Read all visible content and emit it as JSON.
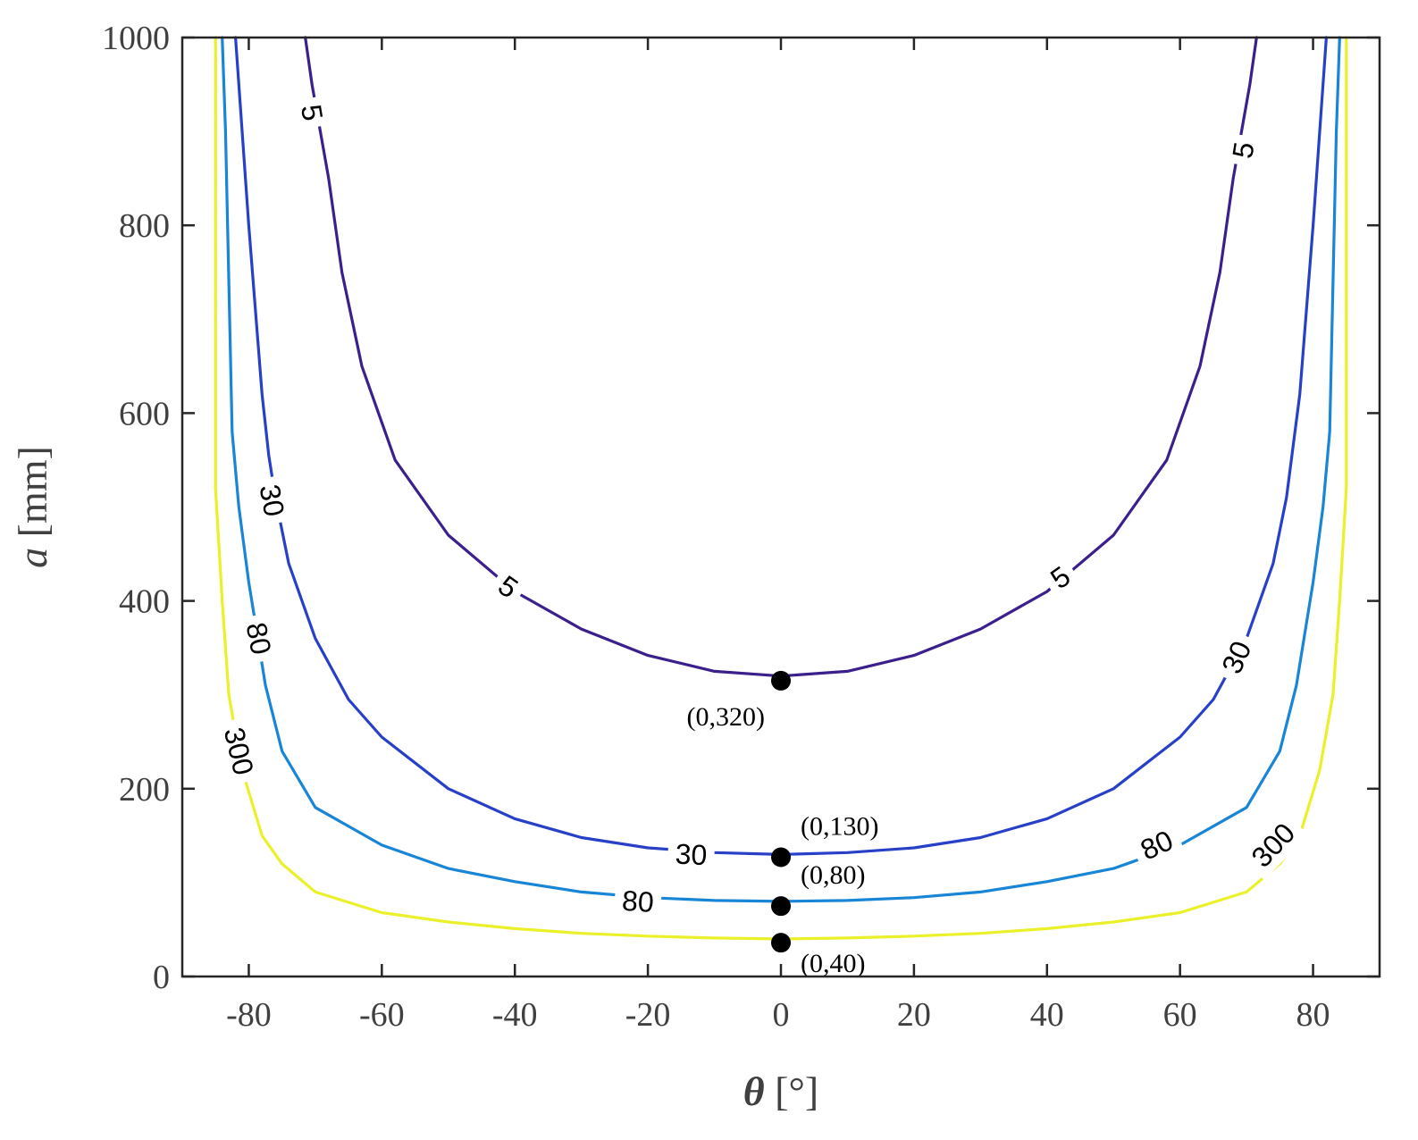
{
  "chart_data": {
    "type": "line",
    "title": "",
    "xlabel_symbol": "θ",
    "xlabel_unit": " [°]",
    "ylabel_symbol": "a",
    "ylabel_unit": " [mm]",
    "xlim": [
      -90,
      90
    ],
    "ylim": [
      0,
      1000
    ],
    "x_ticks": [
      -80,
      -60,
      -40,
      -20,
      0,
      20,
      40,
      60,
      80
    ],
    "y_ticks": [
      0,
      200,
      400,
      600,
      800,
      1000
    ],
    "x_tick_labels": [
      "-80",
      "-60",
      "-40",
      "-20",
      "0",
      "20",
      "40",
      "60",
      "80"
    ],
    "y_tick_labels": [
      "0",
      "200",
      "400",
      "600",
      "800",
      "1000"
    ],
    "grid": false,
    "series": [
      {
        "level": "5",
        "color": "#3b1f8c",
        "points": [
          [
            -71.5,
            1000
          ],
          [
            -70.5,
            950
          ],
          [
            -68,
            850
          ],
          [
            -66,
            750
          ],
          [
            -63,
            650
          ],
          [
            -58,
            550
          ],
          [
            -50,
            470
          ],
          [
            -40,
            410
          ],
          [
            -30,
            370
          ],
          [
            -20,
            342
          ],
          [
            -10,
            325
          ],
          [
            0,
            320
          ],
          [
            10,
            325
          ],
          [
            20,
            342
          ],
          [
            30,
            370
          ],
          [
            40,
            410
          ],
          [
            50,
            470
          ],
          [
            58,
            550
          ],
          [
            63,
            650
          ],
          [
            66,
            750
          ],
          [
            68,
            850
          ],
          [
            70.5,
            950
          ],
          [
            71.5,
            1000
          ]
        ],
        "labels": [
          {
            "text": "5",
            "x": -70.5,
            "y": 920
          },
          {
            "text": "5",
            "x": -41,
            "y": 415
          },
          {
            "text": "5",
            "x": 42,
            "y": 425
          },
          {
            "text": "5",
            "x": 69.5,
            "y": 880
          }
        ]
      },
      {
        "level": "30",
        "color": "#2840c8",
        "points": [
          [
            -82,
            1000
          ],
          [
            -81.5,
            950
          ],
          [
            -80,
            800
          ],
          [
            -78,
            620
          ],
          [
            -77,
            555
          ],
          [
            -76,
            510
          ],
          [
            -74,
            440
          ],
          [
            -70,
            360
          ],
          [
            -65,
            295
          ],
          [
            -60,
            255
          ],
          [
            -50,
            200
          ],
          [
            -40,
            168
          ],
          [
            -30,
            148
          ],
          [
            -20,
            137
          ],
          [
            -10,
            132
          ],
          [
            0,
            130
          ],
          [
            10,
            132
          ],
          [
            20,
            137
          ],
          [
            30,
            148
          ],
          [
            40,
            168
          ],
          [
            50,
            200
          ],
          [
            60,
            255
          ],
          [
            65,
            295
          ],
          [
            70,
            360
          ],
          [
            74,
            440
          ],
          [
            76,
            510
          ],
          [
            78,
            620
          ],
          [
            80,
            800
          ],
          [
            81.5,
            950
          ],
          [
            82,
            1000
          ]
        ],
        "labels": [
          {
            "text": "30",
            "x": -76.5,
            "y": 507
          },
          {
            "text": "30",
            "x": -13.5,
            "y": 130
          },
          {
            "text": "30",
            "x": 68.5,
            "y": 340
          }
        ]
      },
      {
        "level": "80",
        "color": "#1885d6",
        "points": [
          [
            -84,
            1000
          ],
          [
            -83.5,
            900
          ],
          [
            -82.5,
            580
          ],
          [
            -81.5,
            500
          ],
          [
            -80,
            420
          ],
          [
            -77.5,
            310
          ],
          [
            -75,
            240
          ],
          [
            -70,
            180
          ],
          [
            -60,
            140
          ],
          [
            -50,
            115
          ],
          [
            -40,
            101
          ],
          [
            -30,
            90
          ],
          [
            -20,
            84
          ],
          [
            -10,
            81
          ],
          [
            0,
            80
          ],
          [
            10,
            81
          ],
          [
            20,
            84
          ],
          [
            30,
            90
          ],
          [
            40,
            101
          ],
          [
            50,
            115
          ],
          [
            60,
            140
          ],
          [
            70,
            180
          ],
          [
            75,
            240
          ],
          [
            77.5,
            310
          ],
          [
            80,
            420
          ],
          [
            81.5,
            500
          ],
          [
            82.5,
            580
          ],
          [
            83.5,
            900
          ],
          [
            84,
            1000
          ]
        ],
        "labels": [
          {
            "text": "80",
            "x": -78.5,
            "y": 360
          },
          {
            "text": "80",
            "x": -21.5,
            "y": 80
          },
          {
            "text": "80",
            "x": 56.5,
            "y": 140
          }
        ]
      },
      {
        "level": "300",
        "color": "#eaf02a",
        "points": [
          [
            -85,
            1000
          ],
          [
            -85,
            520
          ],
          [
            -84,
            400
          ],
          [
            -83,
            300
          ],
          [
            -81,
            220
          ],
          [
            -78,
            150
          ],
          [
            -75,
            120
          ],
          [
            -70,
            90
          ],
          [
            -60,
            68
          ],
          [
            -50,
            58
          ],
          [
            -40,
            51
          ],
          [
            -30,
            46
          ],
          [
            -20,
            43
          ],
          [
            -10,
            41
          ],
          [
            0,
            40
          ],
          [
            10,
            41
          ],
          [
            20,
            43
          ],
          [
            30,
            46
          ],
          [
            40,
            51
          ],
          [
            50,
            58
          ],
          [
            60,
            68
          ],
          [
            70,
            90
          ],
          [
            75,
            120
          ],
          [
            78,
            150
          ],
          [
            81,
            220
          ],
          [
            83,
            300
          ],
          [
            84,
            400
          ],
          [
            85,
            520
          ],
          [
            85,
            1000
          ]
        ],
        "labels": [
          {
            "text": "300",
            "x": -81.5,
            "y": 240
          },
          {
            "text": "300",
            "x": 74,
            "y": 140
          }
        ]
      }
    ],
    "points": [
      {
        "label": "(0,320)",
        "x": 0,
        "y": 315,
        "label_pos": "below-left"
      },
      {
        "label": "(0,130)",
        "x": 0,
        "y": 127,
        "label_pos": "above-right"
      },
      {
        "label": "(0,80)",
        "x": 0,
        "y": 75,
        "label_pos": "above-right"
      },
      {
        "label": "(0,40)",
        "x": 0,
        "y": 36,
        "label_pos": "below-right"
      }
    ]
  }
}
